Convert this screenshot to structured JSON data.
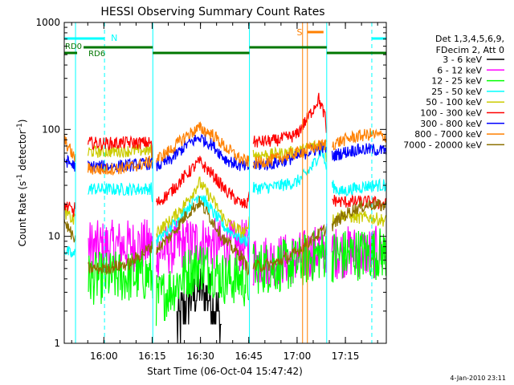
{
  "chart_data": {
    "type": "line",
    "title": "HESSI Observing Summary Count Rates",
    "xlabel": "Start Time (06-Oct-04 15:47:42)",
    "ylabel_main": "Count Rate (s",
    "ylabel_sup1": "-1",
    "ylabel_mid": " detector",
    "ylabel_sup2": "-1",
    "ylabel_end": ")",
    "date_stamp": "4-Jan-2010 23:11",
    "y_scale": "log",
    "ylim": [
      1,
      1000
    ],
    "xlim_minutes": [
      0,
      100
    ],
    "x_ticks": [
      {
        "label": "16:00",
        "minute": 12.3
      },
      {
        "label": "16:15",
        "minute": 27.3
      },
      {
        "label": "16:30",
        "minute": 42.3
      },
      {
        "label": "16:45",
        "minute": 57.3
      },
      {
        "label": "17:00",
        "minute": 72.3
      },
      {
        "label": "17:15",
        "minute": 87.3
      }
    ],
    "y_ticks": [
      {
        "label": "1",
        "value": 1
      },
      {
        "label": "10",
        "value": 10
      },
      {
        "label": "100",
        "value": 100
      },
      {
        "label": "1000",
        "value": 1000
      }
    ],
    "legend": {
      "placement": "right",
      "header": [
        "Det 1,3,4,5,6,9,",
        "FDecim 2, Att 0"
      ]
    },
    "time_marker_labels": {
      "night": "N",
      "saa": "S",
      "rd0": "RD0",
      "rd6": "RD6"
    },
    "marker_colors": {
      "night": "#00ffff",
      "saa": "#ff8000",
      "rd": "#007700"
    },
    "dashed_night_minutes": [
      12.5,
      95.5
    ],
    "saa_minutes": [
      74,
      75.5
    ],
    "gaps": [
      [
        3.5,
        7.3
      ],
      [
        27.5,
        28.5
      ],
      [
        57.5,
        58.5
      ],
      [
        81.5,
        83
      ]
    ],
    "series": [
      {
        "name": "3 - 6 keV",
        "color": "#000000",
        "points": [
          [
            35,
            1.5
          ],
          [
            38,
            2.5
          ],
          [
            42,
            3.2
          ],
          [
            46,
            2.5
          ],
          [
            49,
            1.5
          ]
        ]
      },
      {
        "name": "6 - 12 keV",
        "color": "#ff00ff",
        "points": [
          [
            7.5,
            8
          ],
          [
            12,
            8
          ],
          [
            20,
            8.2
          ],
          [
            27,
            8.3
          ],
          [
            28.5,
            7
          ],
          [
            35,
            8
          ],
          [
            42,
            9
          ],
          [
            50,
            8
          ],
          [
            57,
            8.2
          ],
          [
            58.5,
            6
          ],
          [
            65,
            6
          ],
          [
            72,
            6.2
          ],
          [
            77,
            7
          ],
          [
            81,
            8
          ],
          [
            83,
            7
          ],
          [
            90,
            7.2
          ],
          [
            100,
            7
          ]
        ]
      },
      {
        "name": "12 - 25 keV",
        "color": "#00ff00",
        "points": [
          [
            7.5,
            4
          ],
          [
            12,
            4.1
          ],
          [
            20,
            4.2
          ],
          [
            27,
            4.3
          ],
          [
            28.5,
            2.5
          ],
          [
            33,
            3.2
          ],
          [
            38,
            4.5
          ],
          [
            42,
            5.5
          ],
          [
            46,
            4.8
          ],
          [
            50,
            4
          ],
          [
            55,
            4
          ],
          [
            57,
            3.5
          ],
          [
            58.5,
            5
          ],
          [
            65,
            5.2
          ],
          [
            72,
            5.5
          ],
          [
            77,
            6.5
          ],
          [
            81,
            7
          ],
          [
            83,
            6.5
          ],
          [
            90,
            6.8
          ],
          [
            100,
            7
          ]
        ]
      },
      {
        "name": "25 - 50 keV",
        "color": "#00ffff",
        "points": [
          [
            0,
            7.5
          ],
          [
            3,
            6.5
          ],
          [
            7.5,
            28
          ],
          [
            12,
            27.5
          ],
          [
            20,
            27.5
          ],
          [
            27,
            28
          ],
          [
            28.5,
            9
          ],
          [
            33,
            12
          ],
          [
            38,
            18
          ],
          [
            42,
            25
          ],
          [
            46,
            17
          ],
          [
            50,
            12
          ],
          [
            55,
            9.5
          ],
          [
            57,
            9
          ],
          [
            58.5,
            28
          ],
          [
            65,
            29
          ],
          [
            72,
            32
          ],
          [
            75,
            38
          ],
          [
            77,
            45
          ],
          [
            80,
            65
          ],
          [
            81,
            48
          ],
          [
            83,
            30
          ],
          [
            86,
            26
          ],
          [
            90,
            28
          ],
          [
            95,
            30
          ],
          [
            100,
            30
          ]
        ]
      },
      {
        "name": "50 - 100 keV",
        "color": "#cccc00",
        "points": [
          [
            0,
            17
          ],
          [
            3,
            14
          ],
          [
            7.5,
            62
          ],
          [
            12,
            62
          ],
          [
            20,
            63
          ],
          [
            27,
            64
          ],
          [
            28.5,
            11
          ],
          [
            33,
            14
          ],
          [
            38,
            21
          ],
          [
            42,
            32
          ],
          [
            46,
            22
          ],
          [
            50,
            14
          ],
          [
            55,
            11
          ],
          [
            57,
            11
          ],
          [
            58.5,
            58
          ],
          [
            65,
            58
          ],
          [
            72,
            62
          ],
          [
            74,
            64
          ],
          [
            77,
            70
          ],
          [
            81,
            72
          ],
          [
            83,
            14
          ],
          [
            86,
            16
          ],
          [
            90,
            15
          ],
          [
            95,
            15
          ],
          [
            100,
            14
          ]
        ]
      },
      {
        "name": "100 - 300 keV",
        "color": "#ff0000",
        "points": [
          [
            0,
            20
          ],
          [
            3,
            17
          ],
          [
            7.5,
            75
          ],
          [
            12,
            74
          ],
          [
            20,
            75
          ],
          [
            27,
            75
          ],
          [
            28.5,
            20
          ],
          [
            33,
            26
          ],
          [
            38,
            38
          ],
          [
            42,
            50
          ],
          [
            46,
            38
          ],
          [
            50,
            27
          ],
          [
            55,
            20
          ],
          [
            57,
            20
          ],
          [
            58.5,
            76
          ],
          [
            65,
            78
          ],
          [
            72,
            88
          ],
          [
            75,
            120
          ],
          [
            77,
            150
          ],
          [
            79,
            195
          ],
          [
            81,
            130
          ],
          [
            83,
            22
          ],
          [
            86,
            21
          ],
          [
            90,
            21
          ],
          [
            95,
            21
          ],
          [
            100,
            20
          ]
        ]
      },
      {
        "name": "300 - 800 keV",
        "color": "#0000ff",
        "points": [
          [
            0,
            52
          ],
          [
            3,
            46
          ],
          [
            7.5,
            45
          ],
          [
            12,
            45
          ],
          [
            20,
            46
          ],
          [
            27,
            48
          ],
          [
            28.5,
            45
          ],
          [
            33,
            52
          ],
          [
            38,
            72
          ],
          [
            42,
            84
          ],
          [
            46,
            72
          ],
          [
            50,
            53
          ],
          [
            55,
            45
          ],
          [
            57,
            44
          ],
          [
            58.5,
            46
          ],
          [
            65,
            48
          ],
          [
            72,
            55
          ],
          [
            76,
            62
          ],
          [
            80,
            67
          ],
          [
            81,
            66
          ],
          [
            83,
            56
          ],
          [
            86,
            60
          ],
          [
            90,
            64
          ],
          [
            95,
            65
          ],
          [
            100,
            63
          ]
        ]
      },
      {
        "name": "800 - 7000 keV",
        "color": "#ff8000",
        "points": [
          [
            0,
            80
          ],
          [
            3,
            55
          ],
          [
            7.5,
            43
          ],
          [
            12,
            42
          ],
          [
            20,
            44
          ],
          [
            27,
            50
          ],
          [
            28.5,
            52
          ],
          [
            33,
            64
          ],
          [
            38,
            88
          ],
          [
            42,
            103
          ],
          [
            46,
            90
          ],
          [
            50,
            68
          ],
          [
            55,
            52
          ],
          [
            57,
            50
          ],
          [
            58.5,
            48
          ],
          [
            65,
            52
          ],
          [
            72,
            60
          ],
          [
            76,
            65
          ],
          [
            79,
            70
          ],
          [
            81,
            72
          ],
          [
            83,
            72
          ],
          [
            86,
            78
          ],
          [
            90,
            85
          ],
          [
            95,
            90
          ],
          [
            100,
            86
          ]
        ]
      },
      {
        "name": "7000 - 20000 keV",
        "color": "#8b7000",
        "points": [
          [
            0,
            14
          ],
          [
            3,
            9.5
          ],
          [
            7.5,
            5
          ],
          [
            12,
            5
          ],
          [
            20,
            5.5
          ],
          [
            27,
            8
          ],
          [
            28.5,
            7.5
          ],
          [
            33,
            10
          ],
          [
            38,
            16
          ],
          [
            42,
            21
          ],
          [
            46,
            14
          ],
          [
            50,
            9
          ],
          [
            55,
            6.5
          ],
          [
            57,
            5
          ],
          [
            58.5,
            5.2
          ],
          [
            65,
            5.5
          ],
          [
            72,
            7
          ],
          [
            77,
            9.5
          ],
          [
            81,
            11.5
          ],
          [
            83,
            12.5
          ],
          [
            86,
            15
          ],
          [
            90,
            18
          ],
          [
            95,
            20
          ],
          [
            100,
            19
          ]
        ]
      }
    ]
  }
}
